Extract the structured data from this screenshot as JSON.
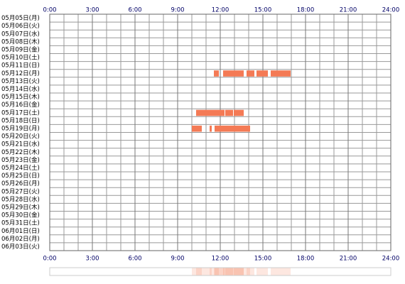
{
  "chart_data": {
    "type": "timeline",
    "categories": [
      "05月05日(月)",
      "05月06日(火)",
      "05月07日(水)",
      "05月08日(木)",
      "05月09日(金)",
      "05月10日(土)",
      "05月11日(日)",
      "05月12日(月)",
      "05月13日(火)",
      "05月14日(水)",
      "05月15日(木)",
      "05月16日(金)",
      "05月17日(土)",
      "05月18日(日)",
      "05月19日(月)",
      "05月20日(火)",
      "05月21日(水)",
      "05月22日(木)",
      "05月23日(金)",
      "05月24日(土)",
      "05月25日(日)",
      "05月26日(月)",
      "05月27日(火)",
      "05月28日(水)",
      "05月29日(木)",
      "05月30日(金)",
      "05月31日(土)",
      "06月01日(日)",
      "06月02日(月)",
      "06月03日(火)"
    ],
    "values": [
      [],
      [],
      [],
      [],
      [],
      [],
      [],
      [
        [
          11.55,
          11.9
        ],
        [
          12.2,
          13.65
        ],
        [
          13.85,
          14.4
        ],
        [
          14.55,
          15.35
        ],
        [
          15.55,
          16.95
        ]
      ],
      [],
      [],
      [],
      [],
      [
        [
          10.3,
          12.3
        ],
        [
          12.35,
          12.9
        ],
        [
          12.95,
          13.65
        ]
      ],
      [],
      [
        [
          10.0,
          10.7
        ],
        [
          11.25,
          11.4
        ],
        [
          11.6,
          14.1
        ]
      ],
      [],
      [],
      [],
      [],
      [],
      [],
      [],
      [],
      [],
      [],
      [],
      [],
      [],
      [],
      []
    ],
    "color": "#f47a55",
    "xlim": [
      0,
      24
    ],
    "xticks": [
      {
        "value": 0,
        "label": "0:00"
      },
      {
        "value": 3,
        "label": "3:00"
      },
      {
        "value": 6,
        "label": "6:00"
      },
      {
        "value": 9,
        "label": "9:00"
      },
      {
        "value": 12,
        "label": "12:00"
      },
      {
        "value": 15,
        "label": "15:00"
      },
      {
        "value": 18,
        "label": "18:00"
      },
      {
        "value": 21,
        "label": "21:00"
      },
      {
        "value": 24,
        "label": "24:00"
      }
    ],
    "grid": true
  }
}
